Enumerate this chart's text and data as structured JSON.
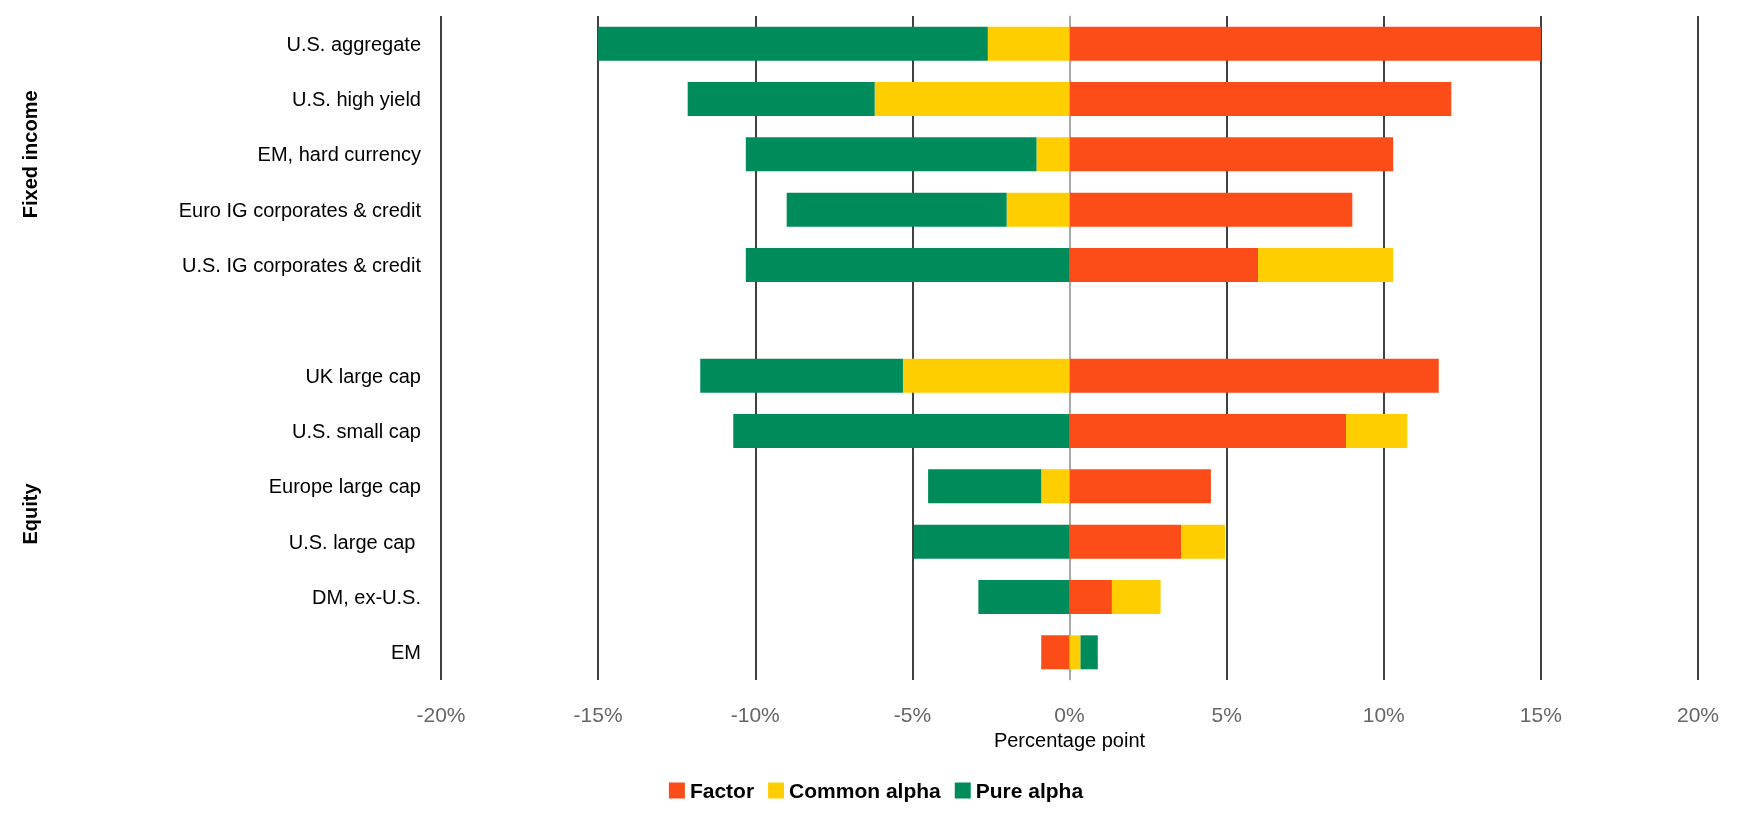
{
  "chart_data": {
    "type": "bar",
    "orientation": "horizontal",
    "stacked": true,
    "xlabel": "Percentage point",
    "categories": [
      "U.S. aggregate",
      "U.S. high yield",
      "EM, hard currency",
      "Euro IG corporates & credit",
      "U.S. IG corporates & credit",
      null,
      "UK large cap",
      "U.S. small cap",
      "Europe large cap",
      "U.S. large cap ",
      "DM, ex-U.S.",
      "EM"
    ],
    "series": [
      {
        "name": "Factor",
        "color": "#fc4c17",
        "values": [
          15,
          12.15,
          10.3,
          9,
          6,
          null,
          11.75,
          8.8,
          4.5,
          3.55,
          1.35,
          -0.9
        ]
      },
      {
        "name": "Common alpha",
        "color": "#ffce00",
        "values": [
          -2.6,
          -6.2,
          -1.05,
          -2,
          4.3,
          null,
          -5.3,
          1.95,
          -0.9,
          1.4,
          1.55,
          0.35
        ]
      },
      {
        "name": "Pure alpha",
        "color": "#008c5a",
        "values": [
          -12.4,
          -5.95,
          -9.25,
          -7,
          -10.3,
          null,
          -6.45,
          -10.7,
          -3.6,
          -4.95,
          -2.9,
          0.55
        ]
      }
    ],
    "xlim": [
      -20,
      20
    ],
    "xticks": [
      {
        "value": -20,
        "label": "-20%"
      },
      {
        "value": -15,
        "label": "-15%"
      },
      {
        "value": -10,
        "label": "-10%"
      },
      {
        "value": -5,
        "label": "-5%"
      },
      {
        "value": 0,
        "label": "0%"
      },
      {
        "value": 5,
        "label": "5%"
      },
      {
        "value": 10,
        "label": "10%"
      },
      {
        "value": 15,
        "label": "15%"
      },
      {
        "value": 20,
        "label": "20%"
      }
    ],
    "grid": "x",
    "legend": "bottom",
    "annotations": [
      "Fixed income",
      "Equity"
    ]
  }
}
